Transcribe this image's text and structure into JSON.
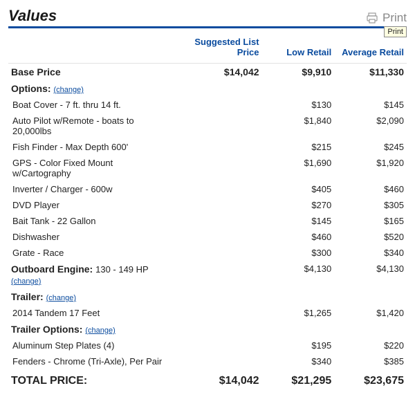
{
  "title": "Values",
  "print": {
    "label": "Print",
    "tooltip": "Print"
  },
  "columns": {
    "c1": "Suggested List Price",
    "c2": "Low Retail",
    "c3": "Average Retail"
  },
  "base": {
    "label": "Base Price",
    "c1": "$14,042",
    "c2": "$9,910",
    "c3": "$11,330"
  },
  "options": {
    "label": "Options:",
    "change": "(change)",
    "items": [
      {
        "label": "Boat Cover - 7 ft. thru 14 ft.",
        "c2": "$130",
        "c3": "$145"
      },
      {
        "label": "Auto Pilot w/Remote - boats to 20,000lbs",
        "c2": "$1,840",
        "c3": "$2,090"
      },
      {
        "label": "Fish Finder - Max Depth 600'",
        "c2": "$215",
        "c3": "$245"
      },
      {
        "label": "GPS - Color Fixed Mount w/Cartography",
        "c2": "$1,690",
        "c3": "$1,920"
      },
      {
        "label": "Inverter / Charger - 600w",
        "c2": "$405",
        "c3": "$460"
      },
      {
        "label": "DVD Player",
        "c2": "$270",
        "c3": "$305"
      },
      {
        "label": "Bait Tank - 22 Gallon",
        "c2": "$145",
        "c3": "$165"
      },
      {
        "label": "Dishwasher",
        "c2": "$460",
        "c3": "$520"
      },
      {
        "label": "Grate - Race",
        "c2": "$300",
        "c3": "$340"
      }
    ]
  },
  "engine": {
    "label": "Outboard Engine:",
    "spec": "130 - 149 HP",
    "change": "(change)",
    "c2": "$4,130",
    "c3": "$4,130"
  },
  "trailer": {
    "label": "Trailer:",
    "change": "(change)",
    "item_label": "2014 Tandem 17 Feet",
    "c2": "$1,265",
    "c3": "$1,420"
  },
  "trailer_options": {
    "label": "Trailer Options:",
    "change": "(change)",
    "items": [
      {
        "label": "Aluminum Step Plates (4)",
        "c2": "$195",
        "c3": "$220"
      },
      {
        "label": "Fenders - Chrome (Tri-Axle), Per Pair",
        "c2": "$340",
        "c3": "$385"
      }
    ]
  },
  "total": {
    "label": "TOTAL PRICE:",
    "c1": "$14,042",
    "c2": "$21,295",
    "c3": "$23,675"
  }
}
